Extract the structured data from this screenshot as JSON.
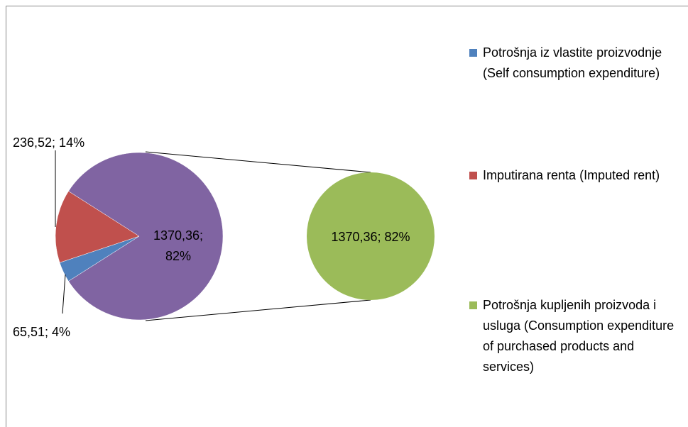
{
  "chart_data": {
    "type": "pie-of-pie",
    "categories": [
      "Potrošnja iz vlastite proizvodnje (Self consumption expenditure)",
      "Imputirana renta (Imputed rent)",
      "Potrošnja kupljenih proizvoda i usluga (Consumption expenditure of purchased products and services)"
    ],
    "values": [
      65.51,
      236.52,
      1370.36
    ],
    "value_labels": [
      "65,51; 4%",
      "236,52; 14%",
      "1370,36; 82%"
    ],
    "colors": [
      "#4f81bd",
      "#c0504d",
      "#9bbb59"
    ],
    "other_color": "#8064a2",
    "legend": "right"
  }
}
